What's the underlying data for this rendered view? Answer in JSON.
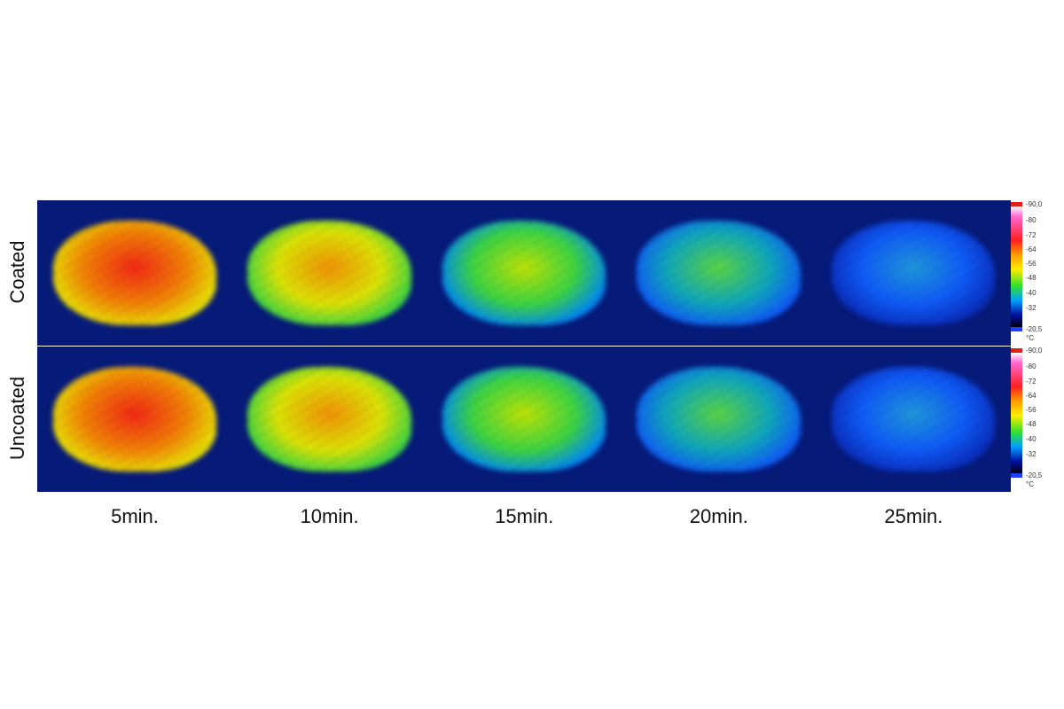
{
  "rows": [
    {
      "label": "Coated",
      "heat": [
        1.0,
        0.8,
        0.55,
        0.42,
        0.28
      ]
    },
    {
      "label": "Uncoated",
      "heat": [
        0.9,
        0.65,
        0.5,
        0.35,
        0.18
      ]
    }
  ],
  "times": [
    "5min.",
    "10min.",
    "15min.",
    "20min.",
    "25min."
  ],
  "colorbar": {
    "ticks": [
      "90,0",
      "80",
      "72",
      "64",
      "56",
      "48",
      "40",
      "32",
      "20,5"
    ],
    "unit": "°C"
  }
}
